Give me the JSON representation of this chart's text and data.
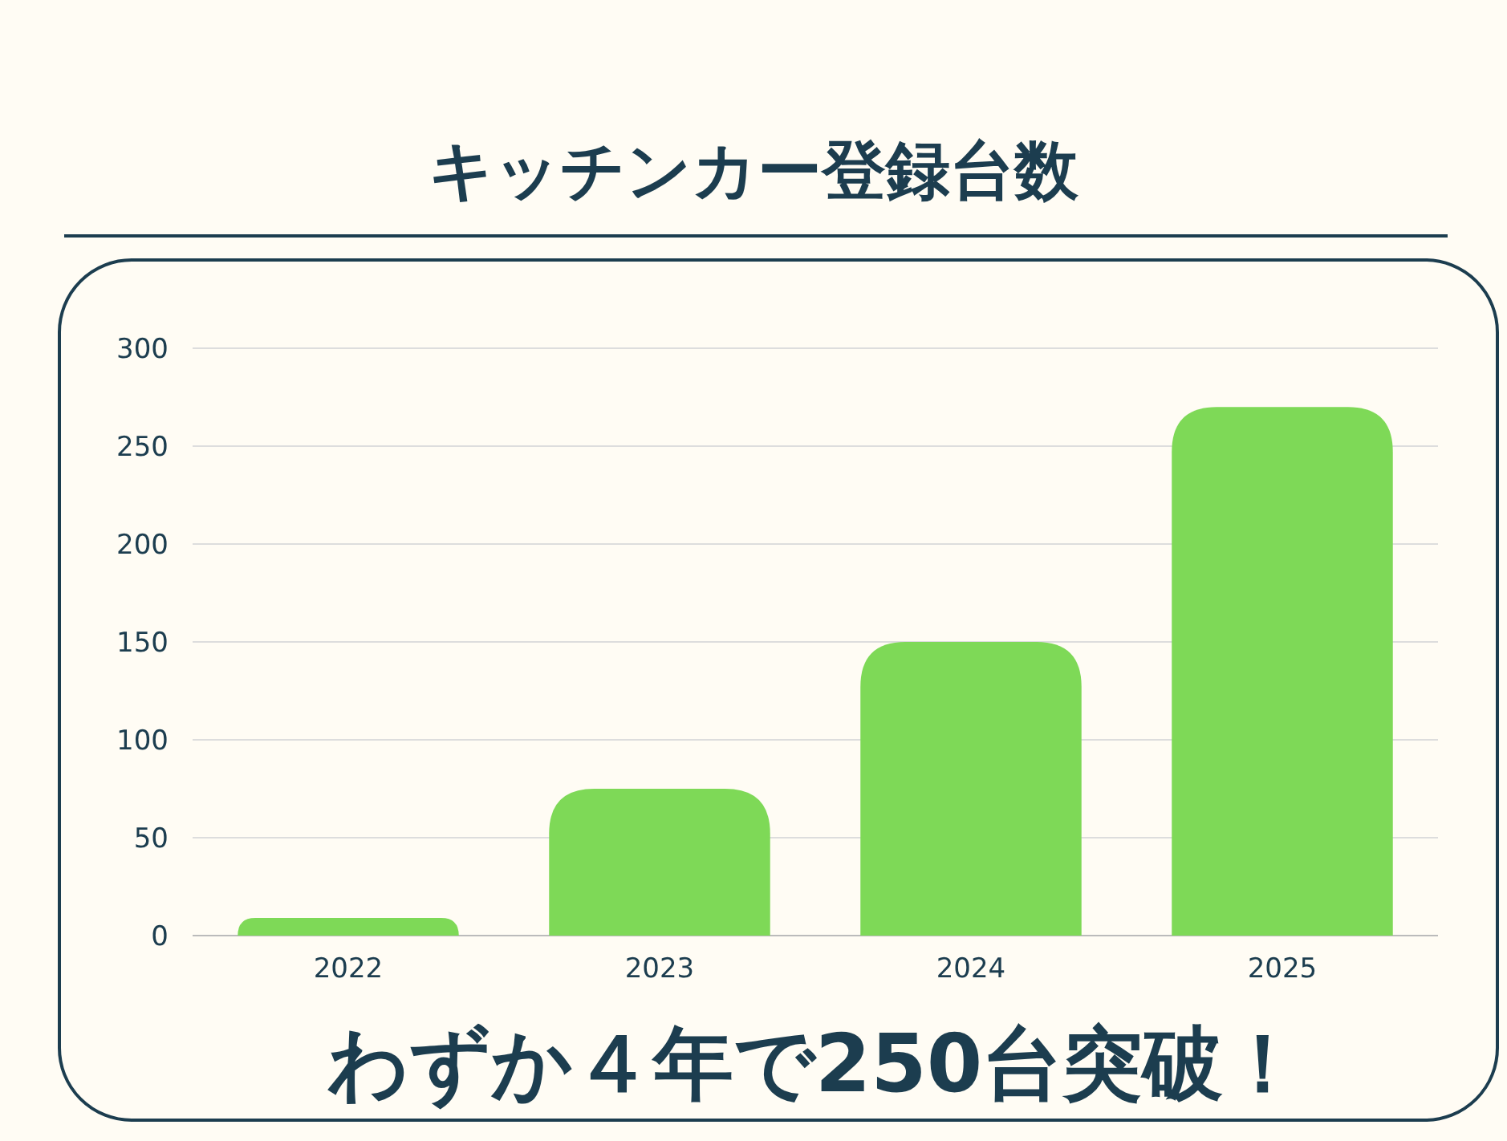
{
  "chart_data": {
    "type": "bar",
    "title": "キッチンカー登録台数",
    "categories": [
      "2022",
      "2023",
      "2024",
      "2025"
    ],
    "values": [
      9,
      75,
      150,
      270
    ],
    "color": "#7ed957",
    "ylim": [
      0,
      300
    ],
    "yticks": [
      0,
      50,
      100,
      150,
      200,
      250,
      300
    ],
    "grid": "y",
    "annotations": [
      "わずか４年で250台突破！"
    ]
  }
}
